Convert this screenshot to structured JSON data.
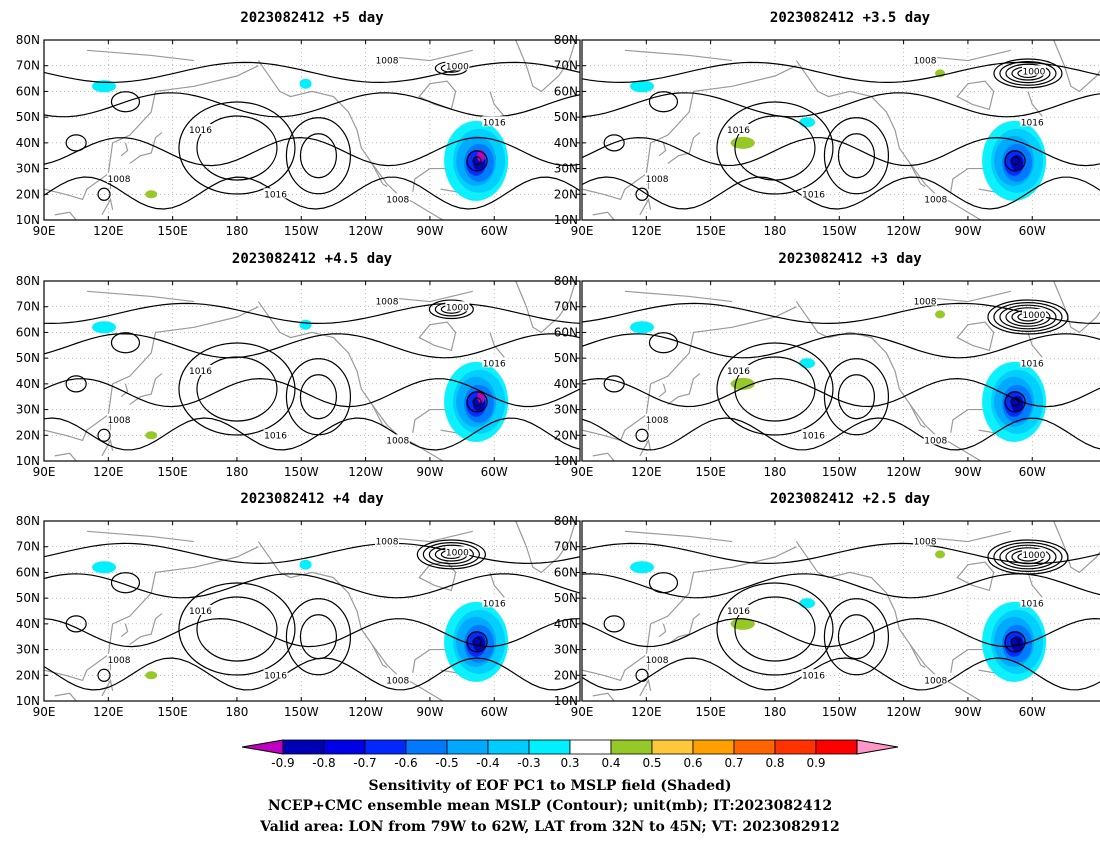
{
  "panels": [
    {
      "title": "2023082412 +5 day"
    },
    {
      "title": "2023082412 +3.5 day"
    },
    {
      "title": "2023082412 +4.5 day"
    },
    {
      "title": "2023082412 +3 day"
    },
    {
      "title": "2023082412 +4 day"
    },
    {
      "title": "2023082412 +2.5 day"
    }
  ],
  "axes": {
    "x_ticks": [
      "90E",
      "120E",
      "150E",
      "180",
      "150W",
      "120W",
      "90W",
      "60W"
    ],
    "y_ticks": [
      "80N",
      "70N",
      "60N",
      "50N",
      "40N",
      "30N",
      "20N",
      "10N"
    ],
    "lon_range": [
      90,
      340
    ],
    "lat_range": [
      10,
      80
    ],
    "grid": true
  },
  "contour_labels": [
    "1000",
    "1008",
    "1016"
  ],
  "colorbar": {
    "values": [
      "-0.9",
      "-0.8",
      "-0.7",
      "-0.6",
      "-0.5",
      "-0.4",
      "-0.3",
      "0.3",
      "0.4",
      "0.5",
      "0.6",
      "0.7",
      "0.8",
      "0.9"
    ],
    "colors": [
      "#c000c0",
      "#0000b4",
      "#0000e6",
      "#0028ff",
      "#0078ff",
      "#00a8ff",
      "#00ccff",
      "#00f0ff",
      "#ffffff",
      "#96c828",
      "#ffc83c",
      "#ffa000",
      "#ff6400",
      "#ff3200",
      "#ff0000",
      "#ff96c8"
    ]
  },
  "caption": {
    "line1": "Sensitivity of EOF PC1 to MSLP field (Shaded)",
    "line2": "NCEP+CMC ensemble mean MSLP (Contour); unit(mb); IT:2023082412",
    "line3": "Valid area: LON from 79W to 62W, LAT from 32N to 45N; VT: 2023082912"
  }
}
